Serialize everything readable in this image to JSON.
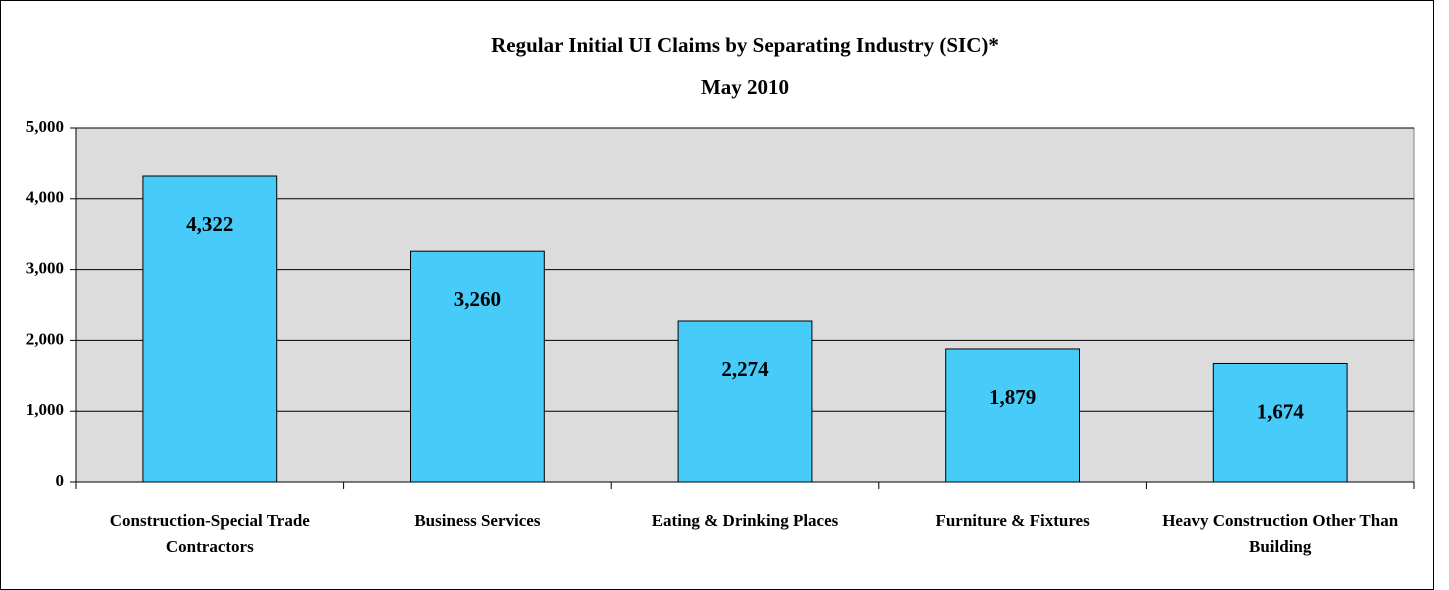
{
  "chart_data": {
    "type": "bar",
    "title": "Regular Initial UI Claims by Separating Industry (SIC)*",
    "subtitle": "May 2010",
    "categories": [
      "Construction-Special Trade Contractors",
      "Business Services",
      "Eating & Drinking Places",
      "Furniture & Fixtures",
      "Heavy Construction Other Than Building"
    ],
    "values": [
      4322,
      3260,
      2274,
      1879,
      1674
    ],
    "value_labels": [
      "4,322",
      "3,260",
      "2,274",
      "1,879",
      "1,674"
    ],
    "color": "#47ccfa",
    "ylim": [
      0,
      5000
    ],
    "yticks": [
      0,
      {
        "value": 1000,
        "label": "1,000"
      },
      {
        "value": 2000,
        "label": "2,000"
      },
      {
        "value": 3000,
        "label": "3,000"
      },
      {
        "value": 4000,
        "label": "4,000"
      },
      {
        "value": 5000,
        "label": "5,000"
      }
    ],
    "grid": true
  }
}
